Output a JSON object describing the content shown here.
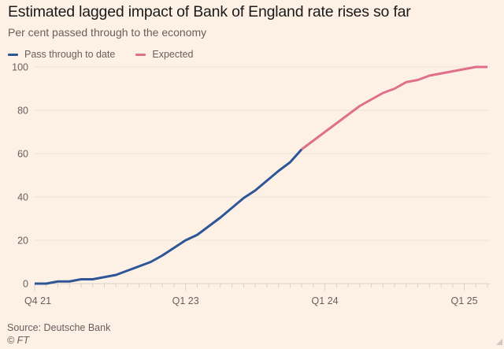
{
  "header": {
    "title": "Estimated lagged impact of Bank of England rate rises so far",
    "subtitle": "Per cent passed through to the economy"
  },
  "legend": [
    {
      "label": "Pass through to date",
      "color": "#2e5697"
    },
    {
      "label": "Expected",
      "color": "#e0708a"
    }
  ],
  "footer": {
    "source": "Source: Deutsche Bank",
    "copyright": "© FT"
  },
  "chart_data": {
    "type": "line",
    "title": "Estimated lagged impact of Bank of England rate rises so far",
    "subtitle": "Per cent passed through to the economy",
    "xlabel": "",
    "ylabel": "",
    "ylim": [
      0,
      100
    ],
    "yticks": [
      0,
      20,
      40,
      60,
      80,
      100
    ],
    "grid": true,
    "legend_position": "top-left",
    "x": [
      "Dec 21",
      "Jan 22",
      "Feb 22",
      "Mar 22",
      "Apr 22",
      "May 22",
      "Jun 22",
      "Jul 22",
      "Aug 22",
      "Sep 22",
      "Oct 22",
      "Nov 22",
      "Dec 22",
      "Jan 23",
      "Feb 23",
      "Mar 23",
      "Apr 23",
      "May 23",
      "Jun 23",
      "Jul 23",
      "Aug 23",
      "Sep 23",
      "Oct 23",
      "Nov 23",
      "Dec 23",
      "Jan 24",
      "Feb 24",
      "Mar 24",
      "Apr 24",
      "May 24",
      "Jun 24",
      "Jul 24",
      "Aug 24",
      "Sep 24",
      "Oct 24",
      "Nov 24",
      "Dec 24",
      "Jan 25",
      "Feb 25",
      "Mar 25"
    ],
    "xtick_labels": [
      {
        "label": "Q4 21",
        "index": 0
      },
      {
        "label": "Q1 23",
        "index": 13
      },
      {
        "label": "Q1 24",
        "index": 25
      },
      {
        "label": "Q1 25",
        "index": 37
      }
    ],
    "series": [
      {
        "name": "Pass through to date",
        "color": "#2e5697",
        "start_index": 0,
        "values": [
          0,
          0,
          1,
          1,
          2,
          2,
          3,
          4,
          6,
          8,
          10,
          13,
          16.5,
          20,
          22.5,
          26.5,
          30.5,
          35,
          39.5,
          43,
          47.5,
          52,
          56,
          62
        ]
      },
      {
        "name": "Expected",
        "color": "#e0708a",
        "start_index": 23,
        "values": [
          62,
          66,
          70,
          74,
          78,
          82,
          85,
          88,
          90,
          93,
          94,
          96,
          97,
          98,
          99,
          100,
          100
        ]
      }
    ]
  }
}
